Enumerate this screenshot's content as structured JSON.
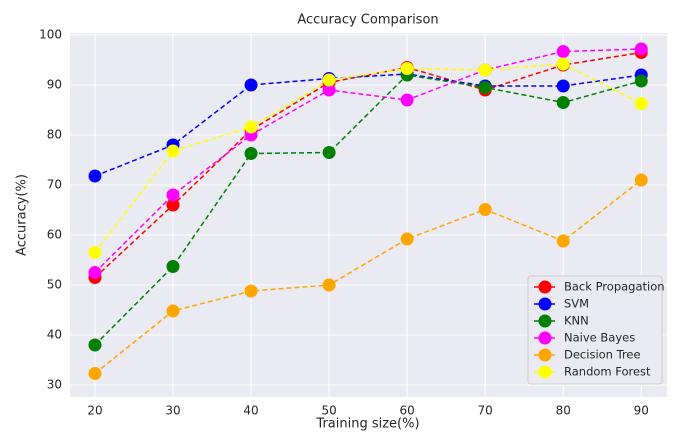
{
  "chart_data": {
    "type": "line",
    "title": "Accuracy Comparison",
    "x_label": "Training size(%)",
    "y_label": "Accuracy(%)",
    "x": [
      20,
      30,
      40,
      50,
      60,
      70,
      80,
      90
    ],
    "xlim": [
      16.8,
      93.3
    ],
    "xticks": [
      20,
      30,
      40,
      50,
      60,
      70,
      80,
      90
    ],
    "ylim": [
      27.6,
      100.4
    ],
    "yticks": [
      30,
      40,
      50,
      60,
      70,
      80,
      90,
      100
    ],
    "grid": true,
    "legend": "lower right",
    "series": [
      {
        "name": "Back Propagation",
        "color": "#ff0000",
        "values": [
          51.5,
          66,
          81,
          90.5,
          93.5,
          89,
          94,
          96.5
        ]
      },
      {
        "name": "SVM",
        "color": "#0000ff",
        "values": [
          71.8,
          78,
          90,
          91.3,
          92.2,
          89.8,
          89.8,
          92
        ]
      },
      {
        "name": "KNN",
        "color": "#008000",
        "values": [
          38,
          53.7,
          76.3,
          76.5,
          92,
          89.5,
          86.5,
          90.8
        ]
      },
      {
        "name": "Naive Bayes",
        "color": "#ff00ff",
        "values": [
          52.5,
          68,
          80,
          89,
          87,
          93,
          96.7,
          97.2
        ]
      },
      {
        "name": "Decision Tree",
        "color": "#ffa500",
        "values": [
          32.3,
          44.8,
          48.8,
          50,
          59.2,
          65.1,
          58.8,
          71
        ]
      },
      {
        "name": "Random Forest",
        "color": "#ffff00",
        "values": [
          56.5,
          76.8,
          81.6,
          91,
          93.3,
          93,
          94.2,
          86.3
        ]
      }
    ]
  }
}
